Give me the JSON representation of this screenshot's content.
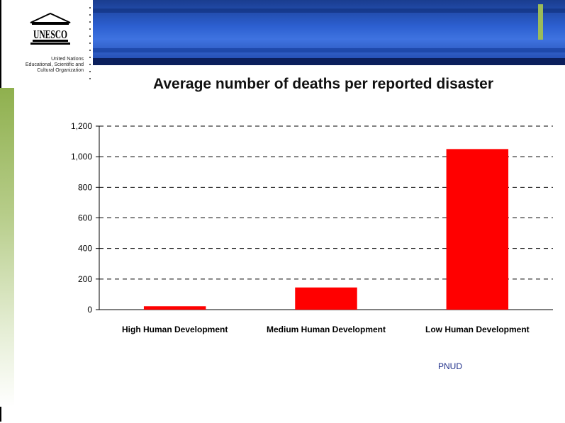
{
  "organization": {
    "logo_text": "UNESCO",
    "name_line1": "United Nations",
    "name_line2": "Educational, Scientific and",
    "name_line3": "Cultural Organization"
  },
  "colors": {
    "bar": "#ff0000",
    "banner": "#2c5fd0",
    "accent": "#9bbb59",
    "source_text": "#1f2f8a"
  },
  "source": "PNUD",
  "chart_data": {
    "type": "bar",
    "title": "Average number of deaths per reported disaster",
    "xlabel": "",
    "ylabel": "",
    "categories": [
      "High Human Development",
      "Medium Human Development",
      "Low Human Development"
    ],
    "values": [
      22,
      145,
      1050
    ],
    "ylim": [
      0,
      1200
    ],
    "yticks": [
      0,
      200,
      400,
      600,
      800,
      1000,
      1200
    ],
    "ytick_labels": [
      "0",
      "200",
      "400",
      "600",
      "800",
      "1,000",
      "1,200"
    ],
    "grid": true,
    "legend": "none"
  }
}
